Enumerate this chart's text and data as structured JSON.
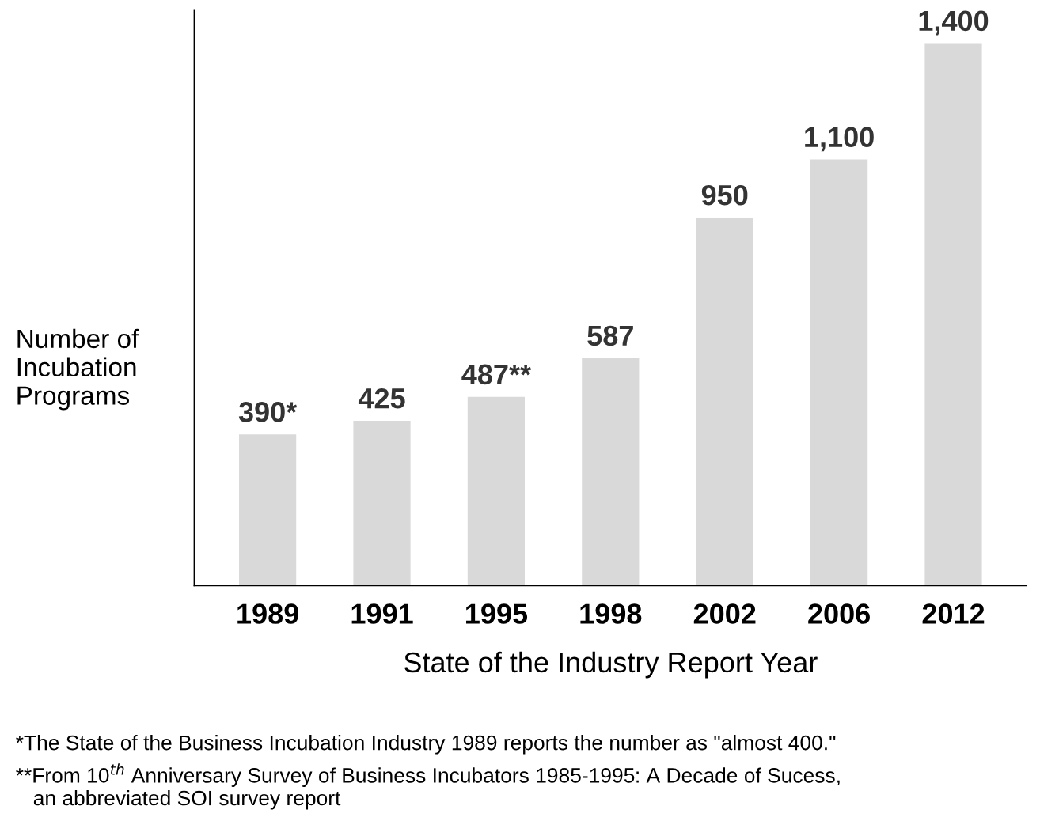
{
  "chart_data": {
    "type": "bar",
    "xlabel": "State of the Industry Report Year",
    "ylabel": "Number of\nIncubation\nPrograms",
    "categories": [
      "1989",
      "1991",
      "1995",
      "1998",
      "2002",
      "2006",
      "2012"
    ],
    "values": [
      390,
      425,
      487,
      587,
      950,
      1100,
      1400
    ],
    "value_labels": [
      "390*",
      "425",
      "487**",
      "587",
      "950",
      "1,100",
      "1,400"
    ],
    "color": "#d9d9d9",
    "tick_labels": "x",
    "grid": false,
    "legend": false,
    "annotations": [
      "*The State of the Business Incubation Industry 1989 reports the number as \"almost 400.\"",
      "**From 10$^{th}$ Anniversary Survey of Business Incubators 1985-1995: A Decade of Sucess,\n   an abbreviated SOI survey report"
    ]
  }
}
